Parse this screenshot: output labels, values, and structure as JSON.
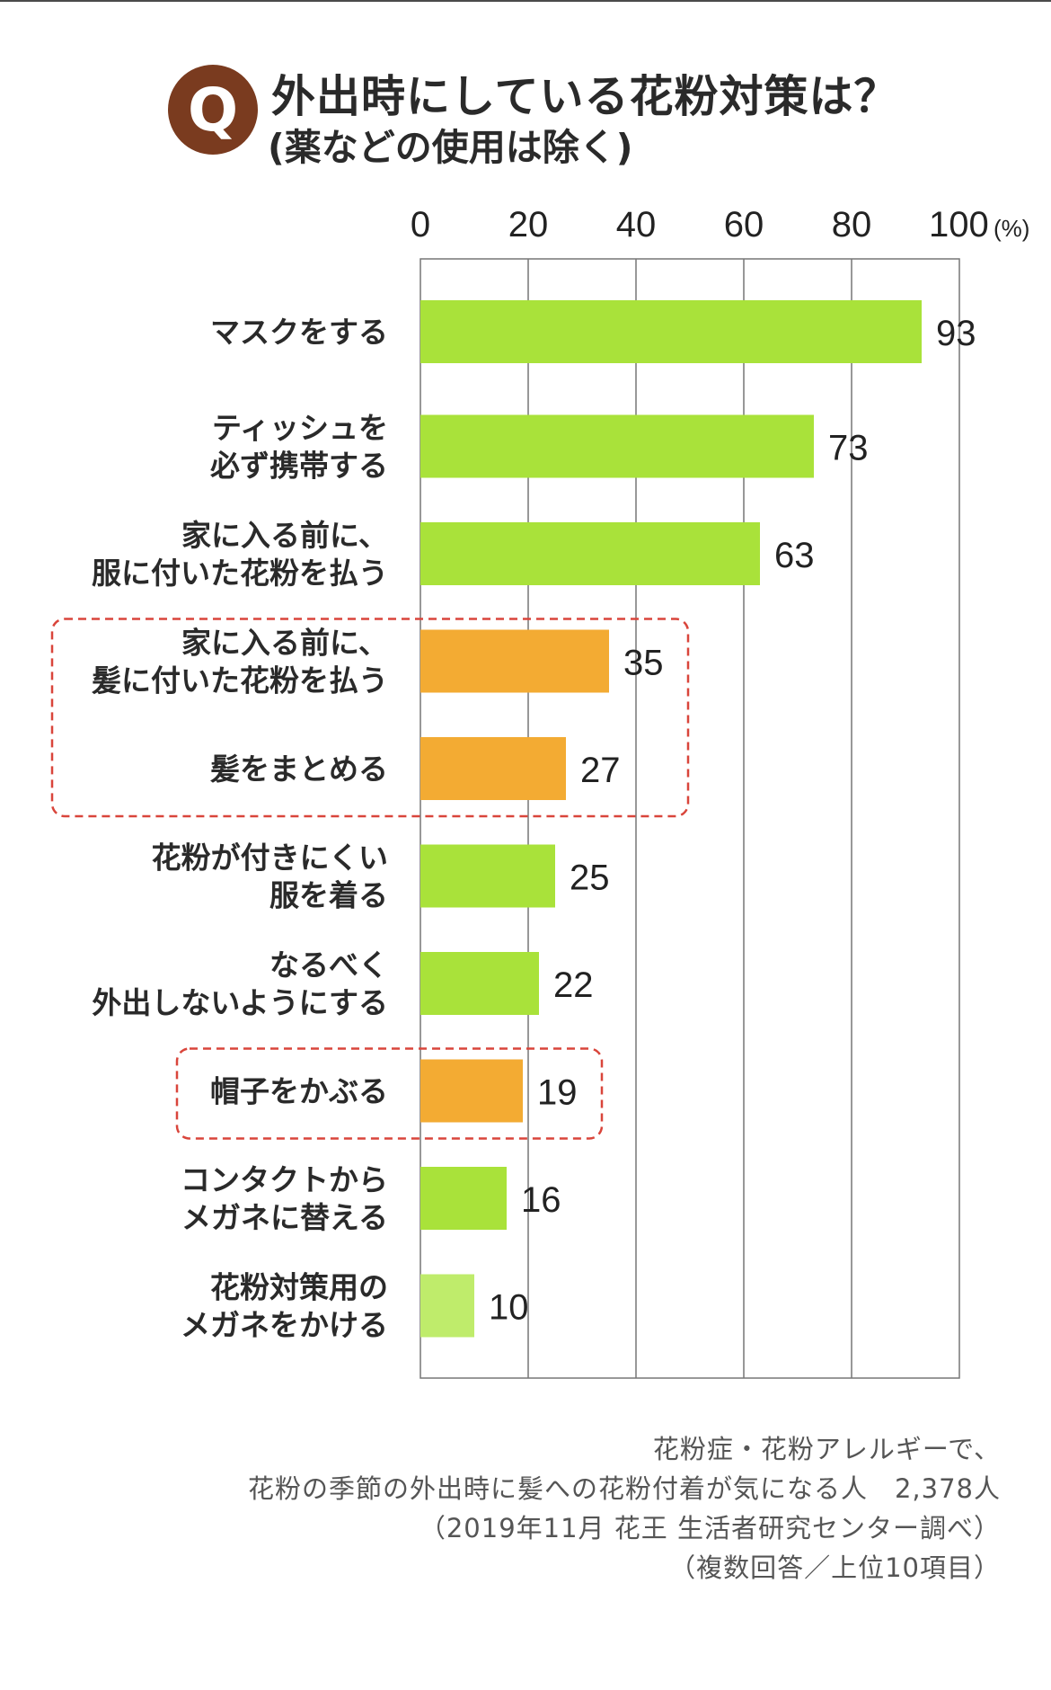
{
  "question": {
    "badge": "Q",
    "title": "外出時にしている花粉対策は？",
    "subtitle": "(薬などの使用は除く)"
  },
  "colors": {
    "green": "#a9e23a",
    "light_green": "#bfec6b",
    "orange": "#f3ab33",
    "highlight_border": "#d9453b",
    "grid": "#777777",
    "badge": "#7a3b1f"
  },
  "chart_data": {
    "type": "bar",
    "orientation": "horizontal",
    "unit": "(%)",
    "xlim": [
      0,
      100
    ],
    "ticks": [
      "0",
      "20",
      "40",
      "60",
      "80",
      "100"
    ],
    "grid": true,
    "categories": [
      [
        "マスクをする"
      ],
      [
        "ティッシュを",
        "必ず携帯する"
      ],
      [
        "家に入る前に、",
        "服に付いた花粉を払う"
      ],
      [
        "家に入る前に、",
        "髪に付いた花粉を払う"
      ],
      [
        "髪をまとめる"
      ],
      [
        "花粉が付きにくい",
        "服を着る"
      ],
      [
        "なるべく",
        "外出しないようにする"
      ],
      [
        "帽子をかぶる"
      ],
      [
        "コンタクトから",
        "メガネに替える"
      ],
      [
        "花粉対策用の",
        "メガネをかける"
      ]
    ],
    "values": [
      93,
      73,
      63,
      35,
      27,
      25,
      22,
      19,
      16,
      10
    ],
    "bar_colors": [
      "green",
      "green",
      "green",
      "orange",
      "orange",
      "green",
      "green",
      "orange",
      "green",
      "light_green"
    ],
    "highlight_groups": [
      [
        3,
        4
      ],
      [
        7
      ]
    ]
  },
  "footnote": {
    "line1": "花粉症・花粉アレルギーで、",
    "line2": "花粉の季節の外出時に髪への花粉付着が気になる人　2,378人",
    "line3": "（2019年11月 花王 生活者研究センター調べ）",
    "line4": "（複数回答／上位10項目）"
  }
}
